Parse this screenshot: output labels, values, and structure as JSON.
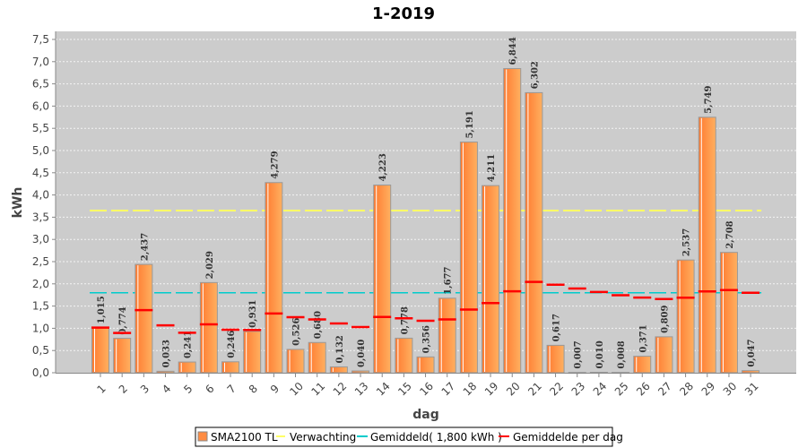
{
  "chart_data": {
    "type": "bar",
    "title": "1-2019",
    "xlabel": "dag",
    "ylabel": "kWh",
    "ylim": [
      0,
      7.5
    ],
    "yticks": [
      "0,0",
      "0,5",
      "1,0",
      "1,5",
      "2,0",
      "2,5",
      "3,0",
      "3,5",
      "4,0",
      "4,5",
      "5,0",
      "5,5",
      "6,0",
      "6,5",
      "7,0",
      "7,5"
    ],
    "grid": true,
    "legend_position": "bottom",
    "categories": [
      "1",
      "2",
      "3",
      "4",
      "5",
      "6",
      "7",
      "8",
      "9",
      "10",
      "11",
      "12",
      "13",
      "14",
      "15",
      "16",
      "17",
      "18",
      "19",
      "20",
      "21",
      "22",
      "23",
      "24",
      "25",
      "26",
      "27",
      "28",
      "29",
      "30",
      "31"
    ],
    "series": [
      {
        "name": "SMA2100 TL",
        "type": "bar",
        "color": "#ff8c42",
        "values": [
          1.015,
          0.774,
          2.437,
          0.033,
          0.241,
          2.029,
          0.246,
          0.931,
          4.279,
          0.526,
          0.68,
          0.132,
          0.04,
          4.223,
          0.778,
          0.356,
          1.677,
          5.191,
          4.211,
          6.844,
          6.302,
          0.617,
          0.007,
          0.01,
          0.008,
          0.371,
          0.809,
          2.537,
          5.749,
          2.708,
          0.047
        ],
        "labels": [
          "1,015",
          "0,774",
          "2,437",
          "0,033",
          "0,241",
          "2,029",
          "0,246",
          "0,931",
          "4,279",
          "0,526",
          "0,680",
          "0,132",
          "0,040",
          "4,223",
          "0,778",
          "0,356",
          "1,677",
          "5,191",
          "4,211",
          "6,844",
          "6,302",
          "0,617",
          "0,007",
          "0,010",
          "0,008",
          "0,371",
          "0,809",
          "2,537",
          "5,749",
          "2,708",
          "0,047"
        ]
      },
      {
        "name": "Verwachting",
        "type": "line",
        "color": "#ffff66",
        "value": 3.65
      },
      {
        "name": "Gemiddeld( 1,800 kWh )",
        "type": "line",
        "color": "#00cccc",
        "value": 1.8
      },
      {
        "name": "Gemiddelde per dag",
        "type": "marker",
        "color": "#ff0000",
        "values": [
          1.015,
          0.895,
          1.409,
          1.065,
          0.9,
          1.088,
          0.968,
          0.963,
          1.332,
          1.251,
          1.199,
          1.11,
          1.028,
          1.256,
          1.224,
          1.17,
          1.2,
          1.422,
          1.568,
          1.832,
          2.045,
          1.98,
          1.894,
          1.816,
          1.743,
          1.691,
          1.658,
          1.689,
          1.829,
          1.859,
          1.8
        ]
      }
    ]
  }
}
